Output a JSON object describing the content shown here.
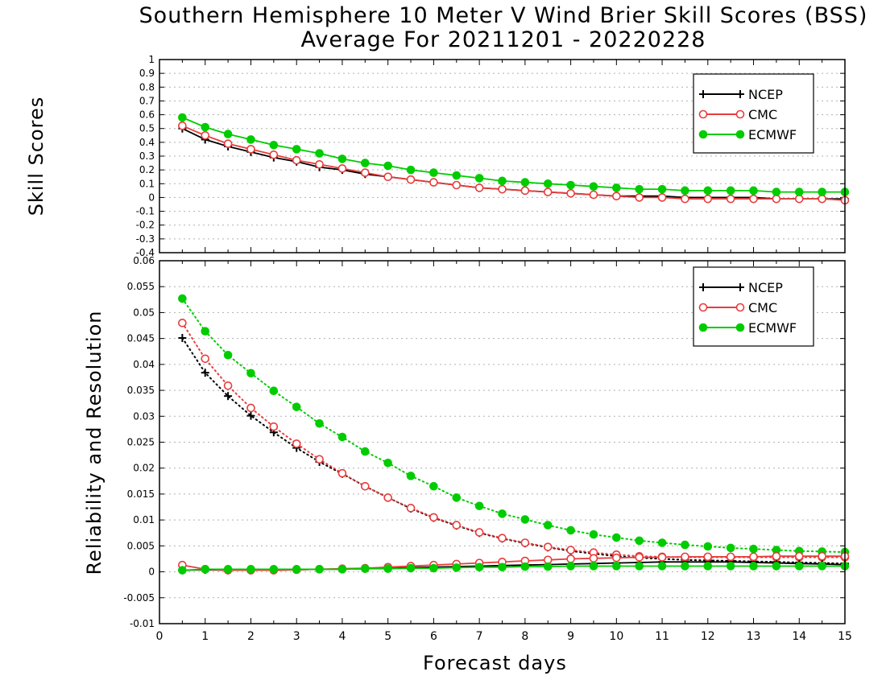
{
  "figure": {
    "title_line1": "Southern Hemisphere 10 Meter V Wind Brier Skill Scores (BSS)",
    "title_line2": "Average For 20211201 - 20220228",
    "xlabel": "Forecast days"
  },
  "colors": {
    "NCEP": "#000000",
    "CMC": "#e83c3c",
    "ECMWF": "#00cc00"
  },
  "chart_data": [
    {
      "type": "line",
      "ylabel": "Skill Scores",
      "xlim": [
        0,
        15
      ],
      "ylim": [
        -0.4,
        1
      ],
      "xticks": [
        "0",
        "1",
        "2",
        "3",
        "4",
        "5",
        "6",
        "7",
        "8",
        "9",
        "10",
        "11",
        "12",
        "13",
        "14",
        "15"
      ],
      "yticks": [
        "-0.4",
        "-0.3",
        "-0.2",
        "-0.1",
        "0",
        "0.1",
        "0.2",
        "0.3",
        "0.4",
        "0.5",
        "0.6",
        "0.7",
        "0.8",
        "0.9",
        "1"
      ],
      "grid": true,
      "legend_position": "top-right",
      "x": [
        0.5,
        1,
        1.5,
        2,
        2.5,
        3,
        3.5,
        4,
        4.5,
        5,
        5.5,
        6,
        6.5,
        7,
        7.5,
        8,
        8.5,
        9,
        9.5,
        10,
        10.5,
        11,
        11.5,
        12,
        12.5,
        13,
        13.5,
        14,
        14.5,
        15
      ],
      "series": [
        {
          "name": "NCEP",
          "marker": "plus",
          "line": "solid",
          "values": [
            0.5,
            0.42,
            0.37,
            0.33,
            0.29,
            0.26,
            0.22,
            0.2,
            0.17,
            0.15,
            0.13,
            0.11,
            0.09,
            0.07,
            0.06,
            0.05,
            0.04,
            0.03,
            0.02,
            0.01,
            0.01,
            0.01,
            0.0,
            0.0,
            0.0,
            0.0,
            -0.01,
            -0.01,
            -0.01,
            -0.01
          ]
        },
        {
          "name": "CMC",
          "marker": "open-circle",
          "line": "solid",
          "values": [
            0.52,
            0.45,
            0.39,
            0.35,
            0.31,
            0.27,
            0.24,
            0.21,
            0.18,
            0.15,
            0.13,
            0.11,
            0.09,
            0.07,
            0.06,
            0.05,
            0.04,
            0.03,
            0.02,
            0.01,
            0.0,
            0.0,
            -0.01,
            -0.01,
            -0.01,
            -0.01,
            -0.01,
            -0.01,
            -0.01,
            -0.02
          ]
        },
        {
          "name": "ECMWF",
          "marker": "filled-circle",
          "line": "solid",
          "values": [
            0.58,
            0.51,
            0.46,
            0.42,
            0.38,
            0.35,
            0.32,
            0.28,
            0.25,
            0.23,
            0.2,
            0.18,
            0.16,
            0.14,
            0.12,
            0.11,
            0.1,
            0.09,
            0.08,
            0.07,
            0.06,
            0.06,
            0.05,
            0.05,
            0.05,
            0.05,
            0.04,
            0.04,
            0.04,
            0.04
          ]
        }
      ]
    },
    {
      "type": "line",
      "ylabel": "Reliability and Resolution",
      "xlim": [
        0,
        15
      ],
      "ylim": [
        -0.01,
        0.06
      ],
      "xticks": [
        "0",
        "1",
        "2",
        "3",
        "4",
        "5",
        "6",
        "7",
        "8",
        "9",
        "10",
        "11",
        "12",
        "13",
        "14",
        "15"
      ],
      "yticks": [
        "-0.01",
        "-0.005",
        "0",
        "0.005",
        "0.01",
        "0.015",
        "0.02",
        "0.025",
        "0.03",
        "0.035",
        "0.04",
        "0.045",
        "0.05",
        "0.055",
        "0.06"
      ],
      "grid": true,
      "legend_position": "top-right",
      "x": [
        0.5,
        1,
        1.5,
        2,
        2.5,
        3,
        3.5,
        4,
        4.5,
        5,
        5.5,
        6,
        6.5,
        7,
        7.5,
        8,
        8.5,
        9,
        9.5,
        10,
        10.5,
        11,
        11.5,
        12,
        12.5,
        13,
        13.5,
        14,
        14.5,
        15
      ],
      "series": [
        {
          "name": "NCEP",
          "kind": "resolution",
          "marker": "plus",
          "line": "dotted",
          "values": [
            0.0451,
            0.0384,
            0.0339,
            0.0301,
            0.0269,
            0.0239,
            0.0212,
            0.0189,
            0.0165,
            0.0143,
            0.0122,
            0.0104,
            0.0089,
            0.0075,
            0.0064,
            0.0055,
            0.0047,
            0.004,
            0.0035,
            0.003,
            0.0027,
            0.0025,
            0.0023,
            0.0022,
            0.0021,
            0.002,
            0.0019,
            0.0018,
            0.0017,
            0.0016
          ]
        },
        {
          "name": "CMC",
          "kind": "resolution",
          "marker": "open-circle",
          "line": "dotted",
          "values": [
            0.048,
            0.0411,
            0.0359,
            0.0316,
            0.028,
            0.0247,
            0.0217,
            0.019,
            0.0165,
            0.0143,
            0.0123,
            0.0105,
            0.009,
            0.0076,
            0.0065,
            0.0056,
            0.0048,
            0.0042,
            0.0037,
            0.0033,
            0.003,
            0.0029,
            0.0028,
            0.0028,
            0.0028,
            0.0028,
            0.0028,
            0.0028,
            0.0028,
            0.0028
          ]
        },
        {
          "name": "ECMWF",
          "kind": "resolution",
          "marker": "filled-circle",
          "line": "dotted",
          "values": [
            0.0527,
            0.0464,
            0.0418,
            0.0383,
            0.0349,
            0.0318,
            0.0286,
            0.026,
            0.0232,
            0.021,
            0.0185,
            0.0165,
            0.0143,
            0.0127,
            0.0112,
            0.0101,
            0.009,
            0.008,
            0.0072,
            0.0066,
            0.006,
            0.0056,
            0.0052,
            0.0049,
            0.0046,
            0.0044,
            0.0042,
            0.004,
            0.0039,
            0.0038
          ]
        },
        {
          "name": "NCEP",
          "kind": "reliability",
          "marker": "plus",
          "line": "solid",
          "values": [
            0.0003,
            0.0004,
            0.0003,
            0.0003,
            0.0003,
            0.0004,
            0.0005,
            0.0005,
            0.0006,
            0.0007,
            0.0008,
            0.0009,
            0.001,
            0.0011,
            0.0012,
            0.0013,
            0.0014,
            0.0015,
            0.0016,
            0.0017,
            0.0018,
            0.0019,
            0.0019,
            0.0019,
            0.0019,
            0.0018,
            0.0017,
            0.0016,
            0.0015,
            0.0014
          ]
        },
        {
          "name": "CMC",
          "kind": "reliability",
          "marker": "open-circle",
          "line": "solid",
          "values": [
            0.0013,
            0.0005,
            0.0003,
            0.0003,
            0.0003,
            0.0004,
            0.0005,
            0.0006,
            0.0007,
            0.0009,
            0.0011,
            0.0013,
            0.0015,
            0.0017,
            0.0019,
            0.0021,
            0.0023,
            0.0025,
            0.0026,
            0.0027,
            0.0028,
            0.0028,
            0.0029,
            0.0029,
            0.0029,
            0.0029,
            0.003,
            0.003,
            0.003,
            0.003
          ]
        },
        {
          "name": "ECMWF",
          "kind": "reliability",
          "marker": "filled-circle",
          "line": "solid",
          "values": [
            0.0003,
            0.0005,
            0.0005,
            0.0005,
            0.0005,
            0.0005,
            0.0005,
            0.0005,
            0.0006,
            0.0006,
            0.0007,
            0.0007,
            0.0008,
            0.0009,
            0.0009,
            0.001,
            0.001,
            0.0011,
            0.0011,
            0.0011,
            0.0011,
            0.0011,
            0.0011,
            0.0011,
            0.0011,
            0.0011,
            0.0011,
            0.0011,
            0.0011,
            0.0011
          ]
        }
      ]
    }
  ]
}
